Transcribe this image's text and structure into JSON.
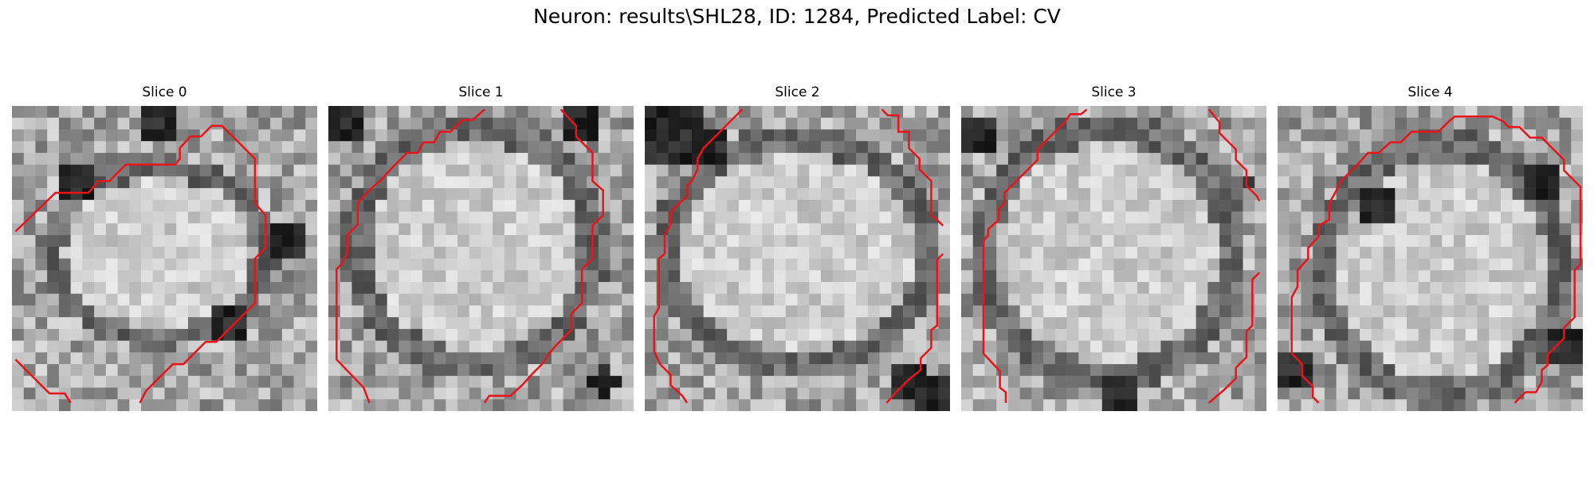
{
  "figure": {
    "title": "Neuron: results\\SHL28, ID: 1284, Predicted Label: CV"
  },
  "colors": {
    "contour": "#e8141a",
    "background": "#ffffff"
  },
  "slices": [
    {
      "label": "Slice 0"
    },
    {
      "label": "Slice 1"
    },
    {
      "label": "Slice 2"
    },
    {
      "label": "Slice 3"
    },
    {
      "label": "Slice 4"
    }
  ]
}
